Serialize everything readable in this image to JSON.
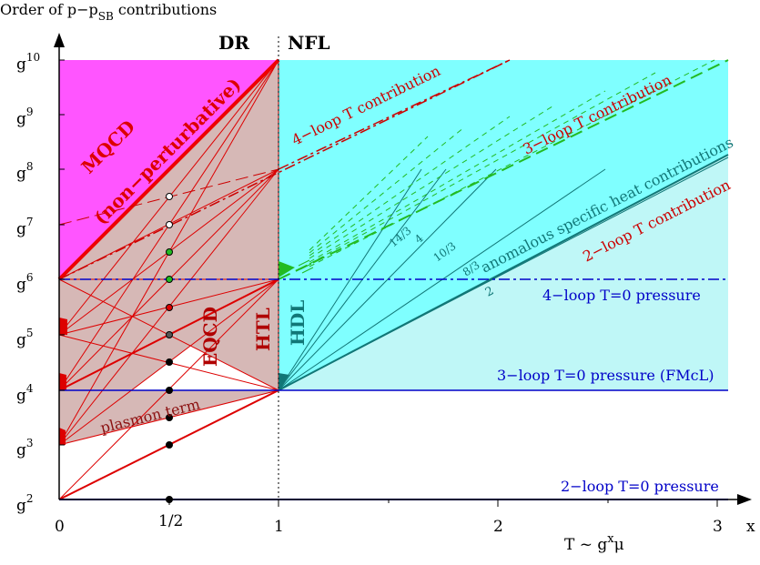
{
  "header": {
    "y_title_main": "Order of p−p",
    "y_title_sub": "SB",
    "y_title_tail": " contributions",
    "region_dr": "DR",
    "region_nfl": "NFL"
  },
  "axes": {
    "y_ticks": [
      {
        "base": "g",
        "exp": "2"
      },
      {
        "base": "g",
        "exp": "3"
      },
      {
        "base": "g",
        "exp": "4"
      },
      {
        "base": "g",
        "exp": "5"
      },
      {
        "base": "g",
        "exp": "6"
      },
      {
        "base": "g",
        "exp": "7"
      },
      {
        "base": "g",
        "exp": "8"
      },
      {
        "base": "g",
        "exp": "9"
      },
      {
        "base": "g",
        "exp": "10"
      }
    ],
    "x_ticks": [
      "0",
      "1/2",
      "1",
      "2",
      "3"
    ],
    "x_axis_label": "x",
    "x_formula_T": "T ~ g",
    "x_formula_exp": "x",
    "x_formula_mu": "μ"
  },
  "labels": {
    "mqcd": "MQCD",
    "nonpert": "(non−perturbative)",
    "eqcd": "EQCD",
    "htl": "HTL",
    "hdl": "HDL",
    "plasmon": "plasmon term",
    "loop4T": "4−loop T contribution",
    "loop3T": "3−loop T contribution",
    "loop2T": "2−loop T contribution",
    "anomalous": "anomalous specific heat contributions",
    "p4": "4−loop T=0 pressure",
    "p3": "3−loop T=0 pressure (FMcL)",
    "p2": "2−loop T=0 pressure",
    "frac_14_3": "14/3",
    "frac_4": "4",
    "frac_10_3": "10/3",
    "frac_8_3": "8/3",
    "frac_2": "2"
  },
  "colors": {
    "magenta": "#ff55ff",
    "brownfill": "#d6b8b6",
    "cyan": "#7fffff",
    "lightcyan": "#bff7f7",
    "red": "#dd0000",
    "darkred": "#b00000",
    "blue": "#0000c8",
    "teal": "#117777",
    "green": "#22bb22"
  }
}
